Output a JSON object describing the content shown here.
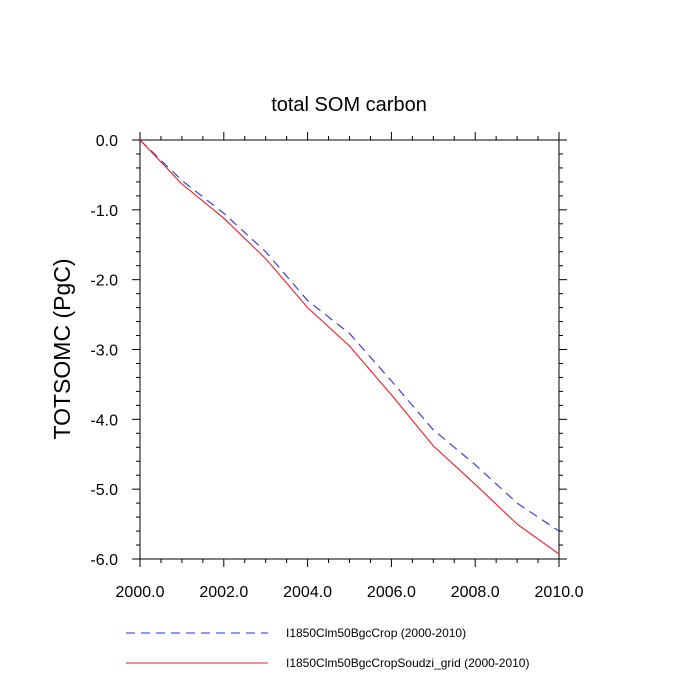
{
  "chart_data": {
    "type": "line",
    "title": "total SOM carbon",
    "xlabel": "",
    "ylabel": "TOTSOMC  (PgC)",
    "xlim": [
      2000,
      2010
    ],
    "ylim": [
      -6,
      0
    ],
    "x_ticks": [
      2000,
      2002,
      2004,
      2006,
      2008,
      2010
    ],
    "x_tick_labels": [
      "2000.0",
      "2002.0",
      "2004.0",
      "2006.0",
      "2008.0",
      "2010.0"
    ],
    "y_ticks": [
      0,
      -1,
      -2,
      -3,
      -4,
      -5,
      -6
    ],
    "y_tick_labels": [
      "0.0",
      "-1.0",
      "-2.0",
      "-3.0",
      "-4.0",
      "-5.0",
      "-6.0"
    ],
    "grid": false,
    "legend_position": "bottom",
    "x": [
      2000,
      2001,
      2002,
      2003,
      2004,
      2005,
      2006,
      2007,
      2008,
      2009,
      2010
    ],
    "series": [
      {
        "name": "I1850Clm50BgcCrop (2000-2010)",
        "values": [
          0.0,
          -0.58,
          -1.05,
          -1.6,
          -2.3,
          -2.77,
          -3.45,
          -4.15,
          -4.65,
          -5.2,
          -5.6
        ],
        "color": "#2a35d6",
        "style": "dashed"
      },
      {
        "name": "I1850Clm50BgcCropSoudzi_grid (2000-2010)",
        "values": [
          0.0,
          -0.63,
          -1.12,
          -1.7,
          -2.4,
          -2.95,
          -3.65,
          -4.38,
          -4.93,
          -5.5,
          -5.93
        ],
        "color": "#e8202a",
        "style": "solid"
      }
    ]
  }
}
